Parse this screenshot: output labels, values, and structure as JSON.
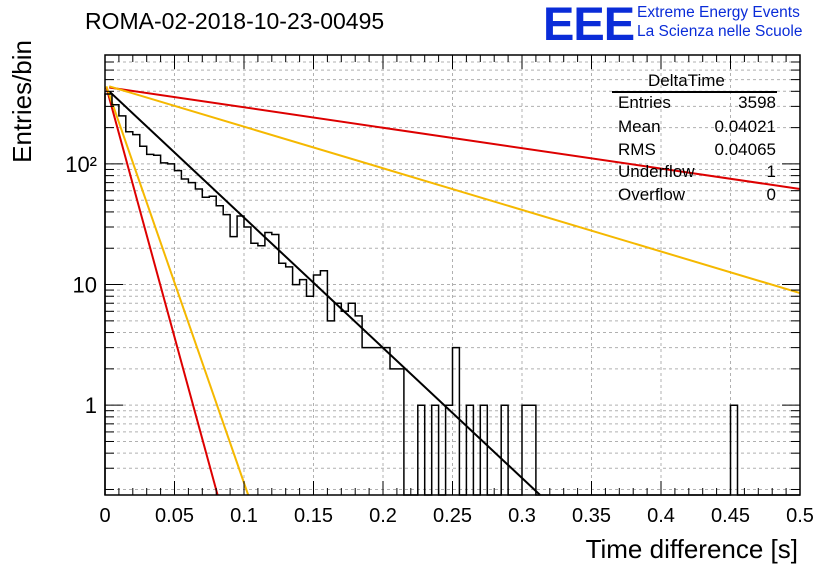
{
  "title": "ROMA-02-2018-10-23-00495",
  "logo": {
    "mark": "EEE",
    "line1": "Extreme Energy Events",
    "line2": "La Scienza nelle Scuole",
    "color": "#0a2cd8"
  },
  "stats": {
    "title": "DeltaTime",
    "rows": [
      {
        "key": "Entries",
        "value": "3598"
      },
      {
        "key": "Mean",
        "value": "0.04021"
      },
      {
        "key": "RMS",
        "value": "0.04065"
      },
      {
        "key": "Underflow",
        "value": "1"
      },
      {
        "key": "Overflow",
        "value": "0"
      }
    ]
  },
  "chart_data": {
    "type": "histogram",
    "title": "ROMA-02-2018-10-23-00495",
    "xlabel": "Time difference [s]",
    "ylabel": "Entries/bin",
    "xlim": [
      0,
      0.5
    ],
    "ylim": [
      0.18,
      800
    ],
    "yscale": "log",
    "grid": true,
    "xticks": [
      0,
      0.05,
      0.1,
      0.15,
      0.2,
      0.25,
      0.3,
      0.35,
      0.4,
      0.45,
      0.5
    ],
    "xtick_labels": [
      "0",
      "0.05",
      "0.1",
      "0.15",
      "0.2",
      "0.25",
      "0.3",
      "0.35",
      "0.4",
      "0.45",
      "0.5"
    ],
    "yticks": [
      1,
      10,
      100
    ],
    "ytick_labels": [
      "1",
      "10",
      "10²"
    ],
    "histogram": {
      "bin_width": 0.005,
      "values": [
        380,
        310,
        250,
        185,
        175,
        140,
        120,
        118,
        102,
        100,
        88,
        75,
        70,
        62,
        53,
        54,
        45,
        38,
        25,
        37,
        30,
        22,
        21,
        27,
        26,
        15,
        14,
        10,
        11,
        8,
        12,
        13,
        5,
        7,
        6,
        7,
        5.5,
        3,
        3,
        3,
        3,
        2,
        2,
        0,
        0,
        1,
        0,
        1,
        0,
        1,
        3,
        0,
        1,
        0,
        1,
        0,
        0,
        1,
        0,
        0,
        1,
        1,
        0,
        0,
        0,
        0,
        0,
        0,
        0,
        0,
        0,
        0,
        0,
        0,
        0,
        0,
        0,
        0,
        0,
        0,
        0,
        0,
        0,
        0,
        0,
        0,
        0,
        0,
        0,
        0,
        1,
        0,
        0,
        0,
        0,
        0,
        0,
        0,
        0,
        0
      ]
    },
    "curves": [
      {
        "color": "#000000",
        "points": [
          [
            0.003,
            400
          ],
          [
            0.313,
            0.18
          ]
        ]
      },
      {
        "color": "#dd0000",
        "points": [
          [
            0.003,
            430
          ],
          [
            0.5,
            62
          ]
        ]
      },
      {
        "color": "#f5b800",
        "points": [
          [
            0.003,
            440
          ],
          [
            0.5,
            8.5
          ]
        ]
      },
      {
        "color": "#dd0000",
        "points": [
          [
            0.001,
            430
          ],
          [
            0.081,
            0.18
          ]
        ]
      },
      {
        "color": "#f5b800",
        "points": [
          [
            0.001,
            440
          ],
          [
            0.103,
            0.18
          ]
        ]
      }
    ]
  }
}
